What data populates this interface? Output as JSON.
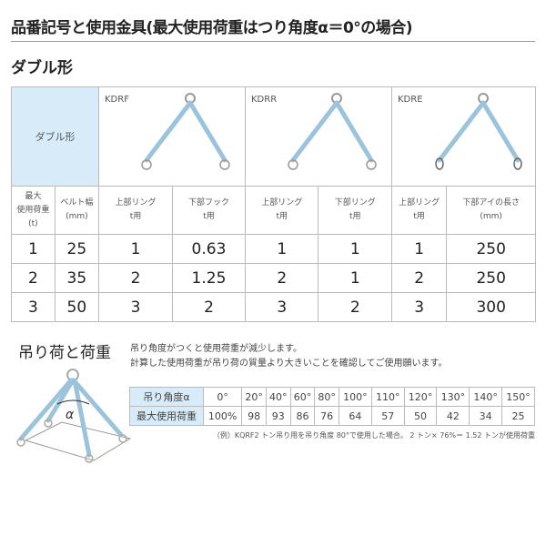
{
  "title": "品番記号と使用金具(最大使用荷重はつり角度α＝0°の場合)",
  "subtitle": "ダブル形",
  "spec_table": {
    "type_label": "ダブル形",
    "models": [
      "KDRF",
      "KDRR",
      "KDRE"
    ],
    "headers": [
      [
        "最大",
        "使用荷重",
        "(t)"
      ],
      [
        "ベルト幅",
        "(mm)"
      ],
      [
        "上部リング",
        "t用"
      ],
      [
        "下部フック",
        "t用"
      ],
      [
        "上部リング",
        "t用"
      ],
      [
        "下部リング",
        "t用"
      ],
      [
        "上部リング",
        "t用"
      ],
      [
        "下部アイの長さ",
        "(mm)"
      ]
    ],
    "rows": [
      [
        "1",
        "25",
        "1",
        "0.63",
        "1",
        "1",
        "1",
        "250"
      ],
      [
        "2",
        "35",
        "2",
        "1.25",
        "2",
        "1",
        "2",
        "250"
      ],
      [
        "3",
        "50",
        "3",
        "2",
        "3",
        "2",
        "3",
        "300"
      ]
    ]
  },
  "load_section": {
    "title": "吊り荷と荷重",
    "desc": [
      "吊り角度がつくと使用荷重が減少します。",
      "計算した使用荷重が吊り荷の質量より大きいことを確認してご使用願います。"
    ],
    "diagram_label": "α",
    "angle_header": "吊り角度α",
    "angles": [
      "0°",
      "20°",
      "40°",
      "60°",
      "80°",
      "100°",
      "110°",
      "120°",
      "130°",
      "140°",
      "150°"
    ],
    "load_header": "最大使用荷重",
    "loads": [
      "100%",
      "98",
      "93",
      "86",
      "76",
      "64",
      "57",
      "50",
      "42",
      "34",
      "25"
    ],
    "note": "（例）KQRF2 トン吊り用を吊り角度 80°で使用した場合。 2 トン× 76%＝ 1.52 トンが使用荷重"
  },
  "colors": {
    "header_blue": "#d7ecf8",
    "rule": "#7aa3b0",
    "sling": "#9cc3dc"
  }
}
